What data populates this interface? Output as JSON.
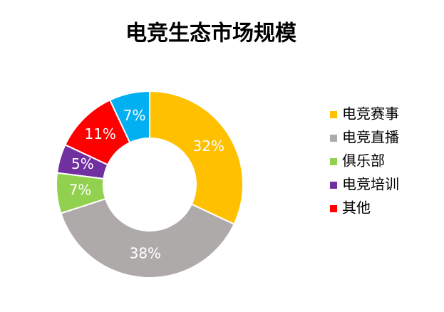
{
  "chart_data": {
    "type": "donut",
    "title": "电竞生态市场规模",
    "categories": [
      "电竞赛事",
      "电竞直播",
      "俱乐部",
      "电竞培训",
      "其他",
      null
    ],
    "values": [
      32,
      38,
      7,
      5,
      11,
      7
    ],
    "value_labels": [
      "32%",
      "38%",
      "7%",
      "5%",
      "11%",
      "7%"
    ],
    "colors": [
      "#ffc000",
      "#aeaaaa",
      "#92d050",
      "#7030a0",
      "#ff0000",
      "#00b0f0"
    ],
    "legend": "right"
  }
}
